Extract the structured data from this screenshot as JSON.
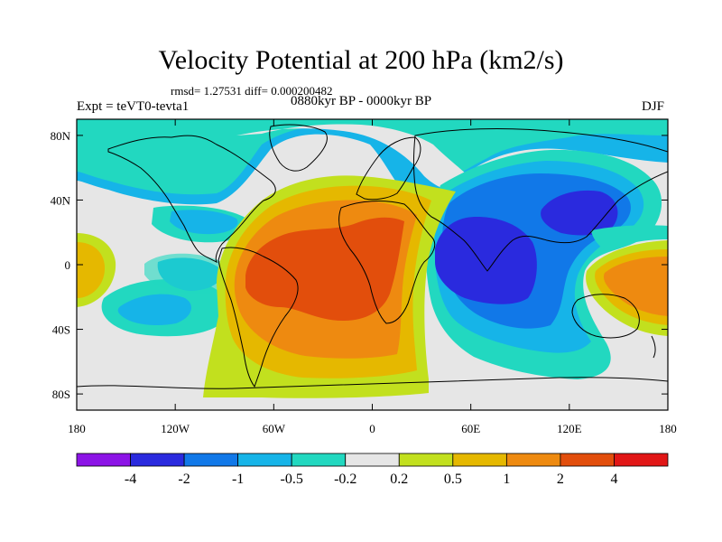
{
  "title": "Velocity Potential at 200 hPa (km2/s)",
  "stats": "rmsd= 1.27531 diff= 0.000200482",
  "left_label": "Expt = teVT0-tevta1",
  "center_label": "0880kyr BP - 0000kyr BP",
  "right_label": "DJF",
  "variable": "velocity potential",
  "pressure_level_hPa": 200,
  "units": "km2/s",
  "axes": {
    "x_ticks": [
      {
        "lon": -180,
        "label": "180"
      },
      {
        "lon": -120,
        "label": "120W"
      },
      {
        "lon": -60,
        "label": "60W"
      },
      {
        "lon": 0,
        "label": "0"
      },
      {
        "lon": 60,
        "label": "60E"
      },
      {
        "lon": 120,
        "label": "120E"
      },
      {
        "lon": 180,
        "label": "180"
      }
    ],
    "y_ticks": [
      {
        "lat": 80,
        "label": "80N"
      },
      {
        "lat": 40,
        "label": "40N"
      },
      {
        "lat": 0,
        "label": "0"
      },
      {
        "lat": -40,
        "label": "40S"
      },
      {
        "lat": -80,
        "label": "80S"
      }
    ],
    "lon_range": [
      -180,
      180
    ],
    "lat_range": [
      -90,
      90
    ]
  },
  "colorbar": {
    "colors": [
      "#8c14e6",
      "#2a2ade",
      "#1178e8",
      "#16b4e8",
      "#22d8c0",
      "#e6e6e6",
      "#c2e01e",
      "#e5b800",
      "#ee8a10",
      "#e24e0c",
      "#e11616"
    ],
    "labels": [
      "-4",
      "-2",
      "-1",
      "-0.5",
      "-0.2",
      "0.2",
      "0.5",
      "1",
      "2",
      "4"
    ]
  },
  "colors": {
    "background_field": "#e6e6e6",
    "coast": "#000000"
  }
}
